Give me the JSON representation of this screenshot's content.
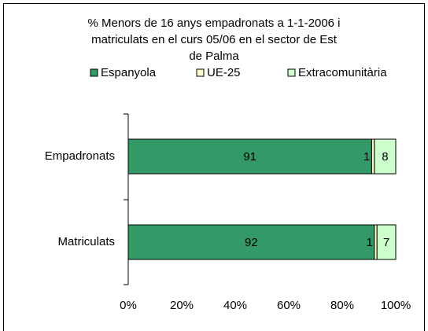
{
  "chart_data": {
    "type": "stacked_bar_horizontal",
    "title": "% Menors de 16 anys empadronats a 1-1-2006 i matriculats en el curs 05/06 en el sector de Est de Palma",
    "categories": [
      "Empadronats",
      "Matriculats"
    ],
    "series": [
      {
        "name": "Espanyola",
        "color": "#339966",
        "values": [
          91,
          92
        ]
      },
      {
        "name": "UE-25",
        "color": "#ffffcc",
        "values": [
          1,
          1
        ]
      },
      {
        "name": "Extracomunitària",
        "color": "#ccffcc",
        "values": [
          8,
          7
        ]
      }
    ],
    "xlim": [
      0,
      100
    ],
    "xticks": [
      {
        "value": 0,
        "label": "0%"
      },
      {
        "value": 20,
        "label": "20%"
      },
      {
        "value": 40,
        "label": "40%"
      },
      {
        "value": 60,
        "label": "60%"
      },
      {
        "value": 80,
        "label": "80%"
      },
      {
        "value": 100,
        "label": "100%"
      }
    ],
    "legend": "top",
    "grid": false
  }
}
